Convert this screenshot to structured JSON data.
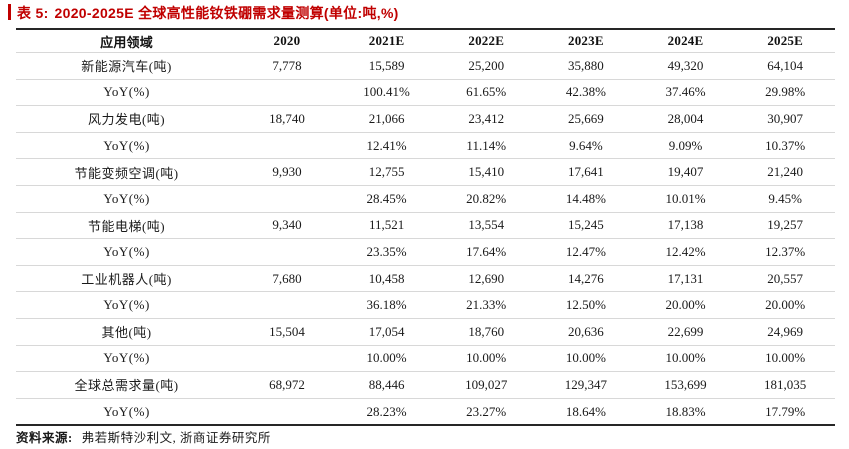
{
  "title": {
    "prefix": "表 5:",
    "text": "2020-2025E 全球高性能钕铁硼需求量测算(单位:吨,%)",
    "accent_color": "#c00000"
  },
  "table": {
    "columns": [
      "应用领域",
      "2020",
      "2021E",
      "2022E",
      "2023E",
      "2024E",
      "2025E"
    ],
    "rows": [
      {
        "label": "新能源汽车(吨)",
        "values": [
          "7,778",
          "15,589",
          "25,200",
          "35,880",
          "49,320",
          "64,104"
        ]
      },
      {
        "label": "YoY(%)",
        "values": [
          "",
          "100.41%",
          "61.65%",
          "42.38%",
          "37.46%",
          "29.98%"
        ]
      },
      {
        "label": "风力发电(吨)",
        "values": [
          "18,740",
          "21,066",
          "23,412",
          "25,669",
          "28,004",
          "30,907"
        ]
      },
      {
        "label": "YoY(%)",
        "values": [
          "",
          "12.41%",
          "11.14%",
          "9.64%",
          "9.09%",
          "10.37%"
        ]
      },
      {
        "label": "节能变频空调(吨)",
        "values": [
          "9,930",
          "12,755",
          "15,410",
          "17,641",
          "19,407",
          "21,240"
        ]
      },
      {
        "label": "YoY(%)",
        "values": [
          "",
          "28.45%",
          "20.82%",
          "14.48%",
          "10.01%",
          "9.45%"
        ]
      },
      {
        "label": "节能电梯(吨)",
        "values": [
          "9,340",
          "11,521",
          "13,554",
          "15,245",
          "17,138",
          "19,257"
        ]
      },
      {
        "label": "YoY(%)",
        "values": [
          "",
          "23.35%",
          "17.64%",
          "12.47%",
          "12.42%",
          "12.37%"
        ]
      },
      {
        "label": "工业机器人(吨)",
        "values": [
          "7,680",
          "10,458",
          "12,690",
          "14,276",
          "17,131",
          "20,557"
        ]
      },
      {
        "label": "YoY(%)",
        "values": [
          "",
          "36.18%",
          "21.33%",
          "12.50%",
          "20.00%",
          "20.00%"
        ]
      },
      {
        "label": "其他(吨)",
        "values": [
          "15,504",
          "17,054",
          "18,760",
          "20,636",
          "22,699",
          "24,969"
        ]
      },
      {
        "label": "YoY(%)",
        "values": [
          "",
          "10.00%",
          "10.00%",
          "10.00%",
          "10.00%",
          "10.00%"
        ]
      },
      {
        "label": "全球总需求量(吨)",
        "values": [
          "68,972",
          "88,446",
          "109,027",
          "129,347",
          "153,699",
          "181,035"
        ]
      },
      {
        "label": "YoY(%)",
        "values": [
          "",
          "28.23%",
          "23.27%",
          "18.64%",
          "18.83%",
          "17.79%"
        ]
      }
    ]
  },
  "source": {
    "label": "资料来源:",
    "text": "弗若斯特沙利文, 浙商证券研究所"
  }
}
